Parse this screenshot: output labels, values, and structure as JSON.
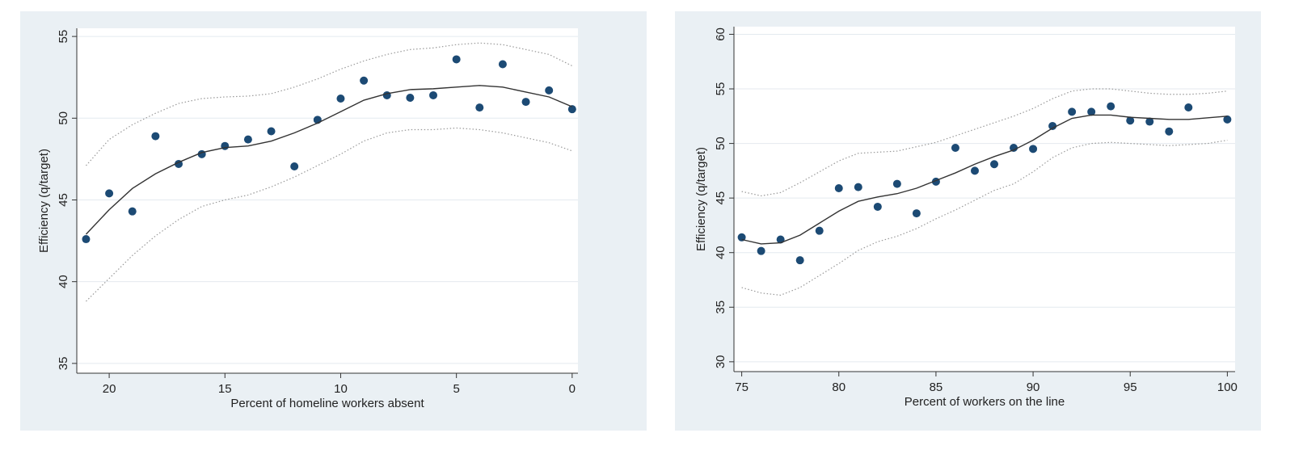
{
  "chart_data": [
    {
      "type": "scatter",
      "x_label": "Percent of homeline workers absent",
      "y_label": "Efficiency (q/target)",
      "xlim": [
        21.4,
        -0.25
      ],
      "ylim": [
        34.4,
        55.5
      ],
      "xticks": [
        20,
        15,
        10,
        5,
        0
      ],
      "yticks": [
        35,
        40,
        45,
        50,
        55
      ],
      "grid": true,
      "series": [
        {
          "mode": "markers",
          "color": "#1c4a74",
          "x": [
            21,
            20,
            19,
            18,
            17,
            16,
            15,
            14,
            13,
            12,
            11,
            10,
            9,
            8,
            7,
            6,
            5,
            4,
            3,
            2,
            1,
            0
          ],
          "values": [
            42.6,
            45.4,
            44.3,
            48.9,
            47.2,
            47.8,
            48.3,
            48.7,
            49.2,
            47.05,
            49.9,
            51.2,
            52.3,
            51.4,
            51.25,
            51.4,
            53.6,
            50.65,
            53.3,
            51.0,
            51.7,
            50.55
          ]
        },
        {
          "mode": "line",
          "color": "#333333",
          "x": [
            21,
            20,
            19,
            18,
            17,
            16,
            15,
            14,
            13,
            12,
            11,
            10,
            9,
            8,
            7,
            6,
            5,
            4,
            3,
            2,
            1,
            0
          ],
          "values": [
            42.9,
            44.4,
            45.7,
            46.6,
            47.3,
            47.9,
            48.2,
            48.3,
            48.6,
            49.1,
            49.7,
            50.4,
            51.1,
            51.5,
            51.75,
            51.8,
            51.9,
            52.0,
            51.9,
            51.6,
            51.3,
            50.7
          ]
        },
        {
          "mode": "dotted",
          "color": "#999999",
          "x": [
            21,
            20,
            19,
            18,
            17,
            16,
            15,
            14,
            13,
            12,
            11,
            10,
            9,
            8,
            7,
            6,
            5,
            4,
            3,
            2,
            1,
            0
          ],
          "values": [
            47.1,
            48.7,
            49.6,
            50.3,
            50.9,
            51.2,
            51.3,
            51.35,
            51.5,
            51.9,
            52.4,
            53.0,
            53.5,
            53.9,
            54.2,
            54.3,
            54.5,
            54.6,
            54.5,
            54.2,
            53.9,
            53.2
          ]
        },
        {
          "mode": "dotted",
          "color": "#999999",
          "x": [
            21,
            20,
            19,
            18,
            17,
            16,
            15,
            14,
            13,
            12,
            11,
            10,
            9,
            8,
            7,
            6,
            5,
            4,
            3,
            2,
            1,
            0
          ],
          "values": [
            38.8,
            40.2,
            41.6,
            42.8,
            43.8,
            44.6,
            45.0,
            45.3,
            45.8,
            46.4,
            47.1,
            47.8,
            48.6,
            49.1,
            49.3,
            49.3,
            49.4,
            49.3,
            49.1,
            48.8,
            48.5,
            48.0
          ]
        }
      ]
    },
    {
      "type": "scatter",
      "x_label": "Percent of workers on the line",
      "y_label": "Efficiency (q/target)",
      "xlim": [
        74.6,
        100.4
      ],
      "ylim": [
        29.1,
        60.7
      ],
      "xticks": [
        75,
        80,
        85,
        90,
        95,
        100
      ],
      "yticks": [
        30,
        35,
        40,
        45,
        50,
        55,
        60
      ],
      "grid": true,
      "series": [
        {
          "mode": "markers",
          "color": "#1c4a74",
          "x": [
            75,
            76,
            77,
            78,
            79,
            80,
            81,
            82,
            83,
            84,
            85,
            86,
            87,
            88,
            89,
            90,
            91,
            92,
            93,
            94,
            95,
            96,
            97,
            98,
            100
          ],
          "values": [
            41.4,
            40.15,
            41.2,
            39.3,
            42.0,
            45.9,
            46.0,
            44.2,
            46.3,
            43.6,
            46.5,
            49.6,
            47.5,
            48.1,
            49.6,
            49.5,
            51.6,
            52.9,
            52.9,
            53.4,
            52.1,
            52.0,
            51.1,
            53.3,
            52.2
          ]
        },
        {
          "mode": "line",
          "color": "#333333",
          "x": [
            75,
            76,
            77,
            78,
            79,
            80,
            81,
            82,
            83,
            84,
            85,
            86,
            87,
            88,
            89,
            90,
            91,
            92,
            93,
            94,
            95,
            96,
            97,
            98,
            99,
            100
          ],
          "values": [
            41.2,
            40.8,
            40.9,
            41.6,
            42.7,
            43.8,
            44.7,
            45.1,
            45.4,
            45.9,
            46.6,
            47.3,
            48.1,
            48.8,
            49.4,
            50.3,
            51.4,
            52.3,
            52.6,
            52.6,
            52.4,
            52.3,
            52.2,
            52.2,
            52.35,
            52.5
          ]
        },
        {
          "mode": "dotted",
          "color": "#999999",
          "x": [
            75,
            76,
            77,
            78,
            79,
            80,
            81,
            82,
            83,
            84,
            85,
            86,
            87,
            88,
            89,
            90,
            91,
            92,
            93,
            94,
            95,
            96,
            97,
            98,
            99,
            100
          ],
          "values": [
            45.6,
            45.2,
            45.5,
            46.4,
            47.4,
            48.4,
            49.1,
            49.2,
            49.3,
            49.7,
            50.1,
            50.7,
            51.3,
            51.9,
            52.5,
            53.2,
            54.1,
            54.8,
            55.0,
            55.0,
            54.8,
            54.6,
            54.5,
            54.5,
            54.6,
            54.8
          ]
        },
        {
          "mode": "dotted",
          "color": "#999999",
          "x": [
            75,
            76,
            77,
            78,
            79,
            80,
            81,
            82,
            83,
            84,
            85,
            86,
            87,
            88,
            89,
            90,
            91,
            92,
            93,
            94,
            95,
            96,
            97,
            98,
            99,
            100
          ],
          "values": [
            36.8,
            36.3,
            36.1,
            36.8,
            37.9,
            39.0,
            40.2,
            41.0,
            41.5,
            42.2,
            43.1,
            43.9,
            44.8,
            45.7,
            46.3,
            47.4,
            48.7,
            49.6,
            50.0,
            50.1,
            50.0,
            49.9,
            49.8,
            49.9,
            50.0,
            50.3
          ]
        }
      ]
    }
  ]
}
